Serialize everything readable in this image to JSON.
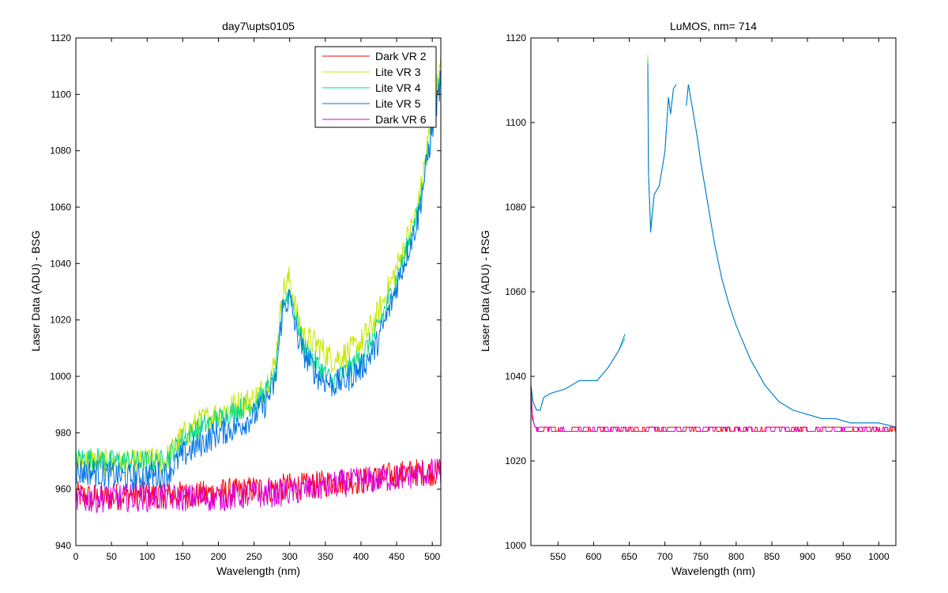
{
  "chart_data": [
    {
      "type": "line",
      "title": "day7\\upts0105",
      "xlabel": "Wavelength (nm)",
      "ylabel": "Laser Data (ADU) - BSG",
      "xlim": [
        0,
        512
      ],
      "ylim": [
        940,
        1120
      ],
      "x_ticks": [
        0,
        50,
        100,
        150,
        200,
        250,
        300,
        350,
        400,
        450,
        500
      ],
      "y_ticks": [
        940,
        960,
        980,
        1000,
        1020,
        1040,
        1060,
        1080,
        1100,
        1120
      ],
      "legend_position": "top-right",
      "series": [
        {
          "name": "Dark VR 2",
          "color": "#ff0000",
          "x": [
            0,
            25,
            50,
            75,
            100,
            125,
            150,
            175,
            200,
            225,
            250,
            275,
            300,
            325,
            350,
            375,
            400,
            425,
            450,
            475,
            500,
            512
          ],
          "y": [
            958,
            957,
            957,
            958,
            958,
            958,
            958,
            958,
            959,
            959,
            960,
            960,
            961,
            961,
            962,
            963,
            963,
            964,
            965,
            966,
            966,
            966
          ],
          "noise": 5
        },
        {
          "name": "Lite VR 3",
          "color": "#c8e600",
          "x": [
            0,
            25,
            50,
            75,
            100,
            125,
            150,
            175,
            200,
            225,
            250,
            265,
            280,
            290,
            300,
            310,
            320,
            340,
            360,
            380,
            400,
            420,
            440,
            460,
            480,
            495,
            505,
            512
          ],
          "y": [
            969,
            970,
            969,
            969,
            970,
            970,
            979,
            984,
            987,
            990,
            992,
            996,
            1005,
            1030,
            1035,
            1022,
            1014,
            1011,
            1006,
            1008,
            1012,
            1020,
            1032,
            1045,
            1060,
            1085,
            1100,
            1110
          ],
          "noise": 5
        },
        {
          "name": "Lite VR 4",
          "color": "#00d98c",
          "x": [
            0,
            25,
            50,
            75,
            100,
            125,
            150,
            175,
            200,
            225,
            250,
            265,
            280,
            290,
            300,
            310,
            320,
            340,
            360,
            380,
            400,
            420,
            440,
            460,
            480,
            495,
            505,
            512
          ],
          "y": [
            971,
            971,
            970,
            970,
            970,
            970,
            978,
            982,
            985,
            988,
            990,
            994,
            1000,
            1026,
            1030,
            1020,
            1010,
            1004,
            998,
            1002,
            1007,
            1015,
            1028,
            1042,
            1058,
            1082,
            1098,
            1108
          ],
          "noise": 4
        },
        {
          "name": "Lite VR 5",
          "color": "#0073e6",
          "x": [
            0,
            25,
            50,
            75,
            100,
            125,
            150,
            175,
            200,
            225,
            250,
            265,
            280,
            290,
            300,
            310,
            320,
            340,
            360,
            380,
            400,
            420,
            440,
            460,
            480,
            495,
            505,
            512
          ],
          "y": [
            966,
            966,
            965,
            964,
            965,
            965,
            972,
            976,
            980,
            982,
            986,
            990,
            998,
            1024,
            1028,
            1015,
            1008,
            1000,
            997,
            999,
            1003,
            1010,
            1024,
            1040,
            1056,
            1080,
            1095,
            1105
          ],
          "noise": 5
        },
        {
          "name": "Dark VR 6",
          "color": "#d900d9",
          "x": [
            0,
            50,
            100,
            150,
            200,
            250,
            300,
            350,
            400,
            450,
            500,
            512
          ],
          "y": [
            956,
            957,
            957,
            957,
            957,
            958,
            959,
            961,
            963,
            964,
            966,
            966
          ],
          "noise": 5
        }
      ]
    },
    {
      "type": "line",
      "title": "LuMOS, nm= 714",
      "xlabel": "Wavelength (nm)",
      "ylabel": "Laser Data (ADU) - RSG",
      "xlim": [
        512,
        1024
      ],
      "ylim": [
        1000,
        1120
      ],
      "x_ticks": [
        550,
        600,
        650,
        700,
        750,
        800,
        850,
        900,
        950,
        1000
      ],
      "y_ticks": [
        1000,
        1020,
        1040,
        1060,
        1080,
        1100,
        1120
      ],
      "series": [
        {
          "color": "#c8e600",
          "x": [
            512,
            515,
            520,
            525,
            530,
            540,
            560,
            580,
            595,
            605,
            620,
            635,
            644,
            null,
            676,
            677,
            680,
            685,
            692,
            700,
            705,
            708,
            712,
            716,
            null,
            730,
            733,
            736,
            740,
            745,
            750,
            760,
            770,
            780,
            790,
            800,
            810,
            820,
            830,
            840,
            850,
            860,
            880,
            900,
            920,
            940,
            960,
            980,
            1000,
            1024
          ],
          "y": [
            1038,
            1034,
            1032,
            1032,
            1035,
            1036,
            1037,
            1039,
            1039,
            1039,
            1042,
            1046,
            1049,
            null,
            1116,
            1088,
            1075,
            1083,
            1085,
            1093,
            1106,
            1102,
            1108,
            1109,
            null,
            1104,
            1109,
            1106,
            1102,
            1097,
            1091,
            1081,
            1071,
            1063,
            1057,
            1052,
            1048,
            1044,
            1041,
            1038,
            1036,
            1034,
            1032,
            1031,
            1030,
            1030,
            1029,
            1029,
            1029,
            1028
          ]
        },
        {
          "color": "#00d98c",
          "x": [
            512,
            515,
            520,
            525,
            530,
            540,
            560,
            580,
            595,
            605,
            620,
            635,
            644,
            null,
            676,
            677,
            680,
            685,
            692,
            700,
            705,
            708,
            712,
            716,
            null,
            730,
            733,
            736,
            740,
            745,
            750,
            760,
            770,
            780,
            790,
            800,
            810,
            820,
            830,
            840,
            850,
            860,
            880,
            900,
            920,
            940,
            960,
            980,
            1000,
            1024
          ],
          "y": [
            1038,
            1034,
            1032,
            1032,
            1035,
            1036,
            1037,
            1039,
            1039,
            1039,
            1042,
            1046,
            1049,
            null,
            1115,
            1088,
            1075,
            1083,
            1085,
            1093,
            1106,
            1102,
            1108,
            1109,
            null,
            1104,
            1109,
            1106,
            1102,
            1097,
            1091,
            1081,
            1071,
            1063,
            1057,
            1052,
            1048,
            1044,
            1041,
            1038,
            1036,
            1034,
            1032,
            1031,
            1030,
            1030,
            1029,
            1029,
            1029,
            1028
          ]
        },
        {
          "color": "#0073e6",
          "x": [
            512,
            515,
            520,
            525,
            530,
            540,
            560,
            580,
            595,
            605,
            620,
            635,
            644,
            null,
            676,
            677,
            680,
            685,
            692,
            700,
            705,
            708,
            712,
            716,
            null,
            730,
            733,
            736,
            740,
            745,
            750,
            760,
            770,
            780,
            790,
            800,
            810,
            820,
            830,
            840,
            850,
            860,
            880,
            900,
            920,
            940,
            960,
            980,
            1000,
            1024
          ],
          "y": [
            1038,
            1034,
            1032,
            1032,
            1035,
            1036,
            1037,
            1039,
            1039,
            1039,
            1042,
            1046,
            1050,
            null,
            1114,
            1088,
            1074,
            1083,
            1085,
            1093,
            1106,
            1102,
            1108,
            1109,
            null,
            1104,
            1109,
            1106,
            1102,
            1097,
            1091,
            1081,
            1071,
            1063,
            1057,
            1052,
            1048,
            1044,
            1041,
            1038,
            1036,
            1034,
            1032,
            1031,
            1030,
            1030,
            1029,
            1029,
            1029,
            1028
          ]
        },
        {
          "color": "#ff0000",
          "x": [
            512,
            514,
            516,
            518,
            520,
            1024
          ],
          "y": [
            1038,
            1031,
            1029,
            1028,
            1028,
            1027.5
          ],
          "flicker": [
            1027,
            1028
          ]
        },
        {
          "color": "#d900d9",
          "x": [
            512,
            514,
            516,
            518,
            520,
            1024
          ],
          "y": [
            1037,
            1030,
            1029,
            1028,
            1028,
            1027.5
          ],
          "flicker": [
            1027,
            1028
          ]
        }
      ]
    }
  ]
}
